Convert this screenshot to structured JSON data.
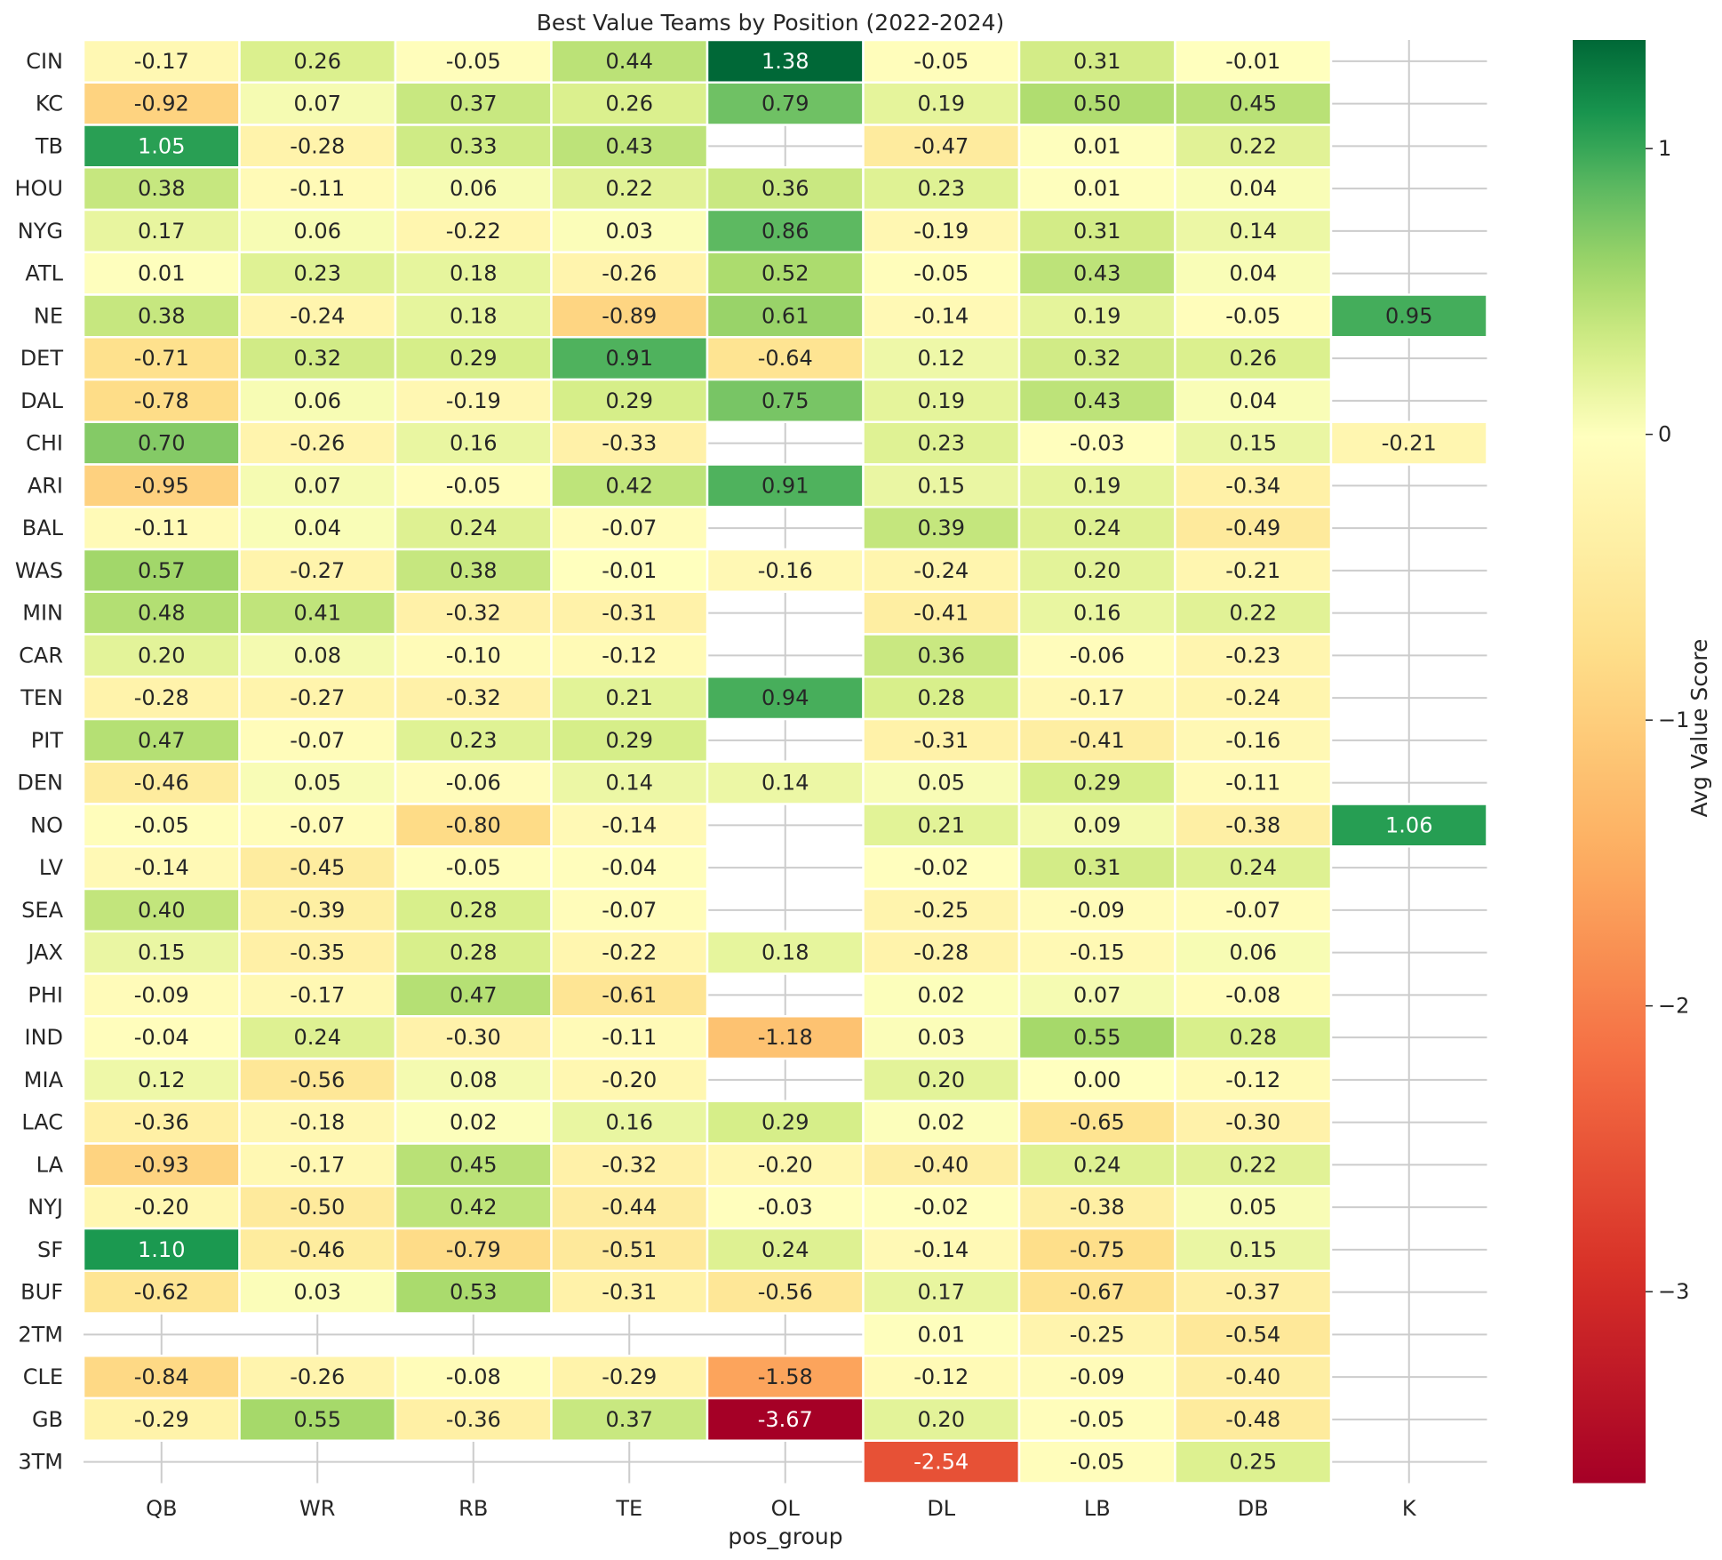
{
  "chart_data": {
    "type": "heatmap",
    "title": "Best Value Teams by Position (2022-2024)",
    "xlabel": "pos_group",
    "ylabel": "",
    "colorbar_label": "Avg Value Score",
    "colormap": "RdYlGn",
    "vmin": -3.67,
    "vmax": 1.38,
    "colorbar_ticks": [
      -3,
      -2,
      -1,
      0,
      1
    ],
    "colorbar_tick_labels": [
      "−3",
      "−2",
      "−1",
      "0",
      "1"
    ],
    "grid": true,
    "x_categories": [
      "QB",
      "WR",
      "RB",
      "TE",
      "OL",
      "DL",
      "LB",
      "DB",
      "K"
    ],
    "y_categories": [
      "CIN",
      "KC",
      "TB",
      "HOU",
      "NYG",
      "ATL",
      "NE",
      "DET",
      "DAL",
      "CHI",
      "ARI",
      "BAL",
      "WAS",
      "MIN",
      "CAR",
      "TEN",
      "PIT",
      "DEN",
      "NO",
      "LV",
      "SEA",
      "JAX",
      "PHI",
      "IND",
      "MIA",
      "LAC",
      "LA",
      "NYJ",
      "SF",
      "BUF",
      "2TM",
      "CLE",
      "GB",
      "3TM"
    ],
    "values": [
      [
        -0.17,
        0.26,
        -0.05,
        0.44,
        1.38,
        -0.05,
        0.31,
        -0.01,
        null
      ],
      [
        -0.92,
        0.07,
        0.37,
        0.26,
        0.79,
        0.19,
        0.5,
        0.45,
        null
      ],
      [
        1.05,
        -0.28,
        0.33,
        0.43,
        null,
        -0.47,
        0.01,
        0.22,
        null
      ],
      [
        0.38,
        -0.11,
        0.06,
        0.22,
        0.36,
        0.23,
        0.01,
        0.04,
        null
      ],
      [
        0.17,
        0.06,
        -0.22,
        0.03,
        0.86,
        -0.19,
        0.31,
        0.14,
        null
      ],
      [
        0.01,
        0.23,
        0.18,
        -0.26,
        0.52,
        -0.05,
        0.43,
        0.04,
        null
      ],
      [
        0.38,
        -0.24,
        0.18,
        -0.89,
        0.61,
        -0.14,
        0.19,
        -0.05,
        0.95
      ],
      [
        -0.71,
        0.32,
        0.29,
        0.91,
        -0.64,
        0.12,
        0.32,
        0.26,
        null
      ],
      [
        -0.78,
        0.06,
        -0.19,
        0.29,
        0.75,
        0.19,
        0.43,
        0.04,
        null
      ],
      [
        0.7,
        -0.26,
        0.16,
        -0.33,
        null,
        0.23,
        -0.03,
        0.15,
        -0.21
      ],
      [
        -0.95,
        0.07,
        -0.05,
        0.42,
        0.91,
        0.15,
        0.19,
        -0.34,
        null
      ],
      [
        -0.11,
        0.04,
        0.24,
        -0.07,
        null,
        0.39,
        0.24,
        -0.49,
        null
      ],
      [
        0.57,
        -0.27,
        0.38,
        -0.01,
        -0.16,
        -0.24,
        0.2,
        -0.21,
        null
      ],
      [
        0.48,
        0.41,
        -0.32,
        -0.31,
        null,
        -0.41,
        0.16,
        0.22,
        null
      ],
      [
        0.2,
        0.08,
        -0.1,
        -0.12,
        null,
        0.36,
        -0.06,
        -0.23,
        null
      ],
      [
        -0.28,
        -0.27,
        -0.32,
        0.21,
        0.94,
        0.28,
        -0.17,
        -0.24,
        null
      ],
      [
        0.47,
        -0.07,
        0.23,
        0.29,
        null,
        -0.31,
        -0.41,
        -0.16,
        null
      ],
      [
        -0.46,
        0.05,
        -0.06,
        0.14,
        0.14,
        0.05,
        0.29,
        -0.11,
        null
      ],
      [
        -0.05,
        -0.07,
        -0.8,
        -0.14,
        null,
        0.21,
        0.09,
        -0.38,
        1.06
      ],
      [
        -0.14,
        -0.45,
        -0.05,
        -0.04,
        null,
        -0.02,
        0.31,
        0.24,
        null
      ],
      [
        0.4,
        -0.39,
        0.28,
        -0.07,
        null,
        -0.25,
        -0.09,
        -0.07,
        null
      ],
      [
        0.15,
        -0.35,
        0.28,
        -0.22,
        0.18,
        -0.28,
        -0.15,
        0.06,
        null
      ],
      [
        -0.09,
        -0.17,
        0.47,
        -0.61,
        null,
        0.02,
        0.07,
        -0.08,
        null
      ],
      [
        -0.04,
        0.24,
        -0.3,
        -0.11,
        -1.18,
        0.03,
        0.55,
        0.28,
        null
      ],
      [
        0.12,
        -0.56,
        0.08,
        -0.2,
        null,
        0.2,
        0.0,
        -0.12,
        null
      ],
      [
        -0.36,
        -0.18,
        0.02,
        0.16,
        0.29,
        0.02,
        -0.65,
        -0.3,
        null
      ],
      [
        -0.93,
        -0.17,
        0.45,
        -0.32,
        -0.2,
        -0.4,
        0.24,
        0.22,
        null
      ],
      [
        -0.2,
        -0.5,
        0.42,
        -0.44,
        -0.03,
        -0.02,
        -0.38,
        0.05,
        null
      ],
      [
        1.1,
        -0.46,
        -0.79,
        -0.51,
        0.24,
        -0.14,
        -0.75,
        0.15,
        null
      ],
      [
        -0.62,
        0.03,
        0.53,
        -0.31,
        -0.56,
        0.17,
        -0.67,
        -0.37,
        null
      ],
      [
        null,
        null,
        null,
        null,
        null,
        0.01,
        -0.25,
        -0.54,
        null
      ],
      [
        -0.84,
        -0.26,
        -0.08,
        -0.29,
        -1.58,
        -0.12,
        -0.09,
        -0.4,
        null
      ],
      [
        -0.29,
        0.55,
        -0.36,
        0.37,
        -3.67,
        0.2,
        -0.05,
        -0.48,
        null
      ],
      [
        null,
        null,
        null,
        null,
        null,
        -2.54,
        -0.05,
        0.25,
        null
      ]
    ]
  }
}
